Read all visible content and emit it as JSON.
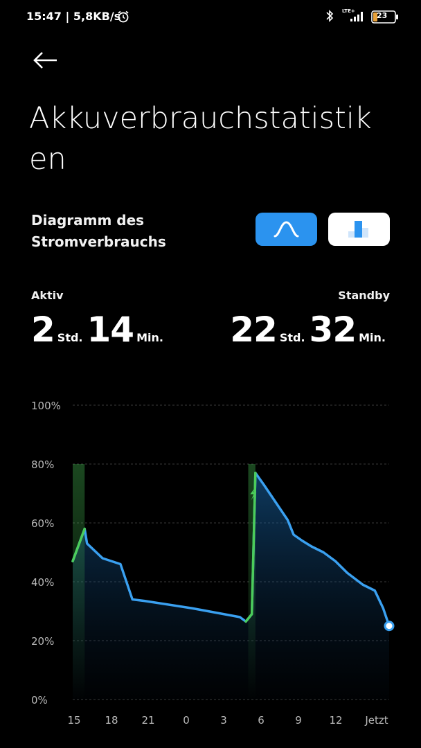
{
  "status_bar": {
    "time_and_speed": "15:47 | 5,8KB/s",
    "network_label": "LTE+",
    "battery_level": "23",
    "icons": [
      "alarm-icon",
      "bluetooth-icon",
      "signal-icon",
      "battery-icon"
    ]
  },
  "header": {
    "back_icon": "arrow-left-icon",
    "title": "Akkuverbrauchstatistiken"
  },
  "diagram": {
    "title": "Diagramm des Stromverbrauchs",
    "toggles": [
      {
        "name": "curve-view",
        "icon": "curve-icon",
        "selected": true
      },
      {
        "name": "bar-view",
        "icon": "bar-chart-icon",
        "selected": false
      }
    ]
  },
  "usage": {
    "active_label": "Aktiv",
    "active_hours": "2",
    "active_hours_unit": "Std.",
    "active_minutes": "14",
    "active_minutes_unit": "Min.",
    "standby_label": "Standby",
    "standby_hours": "22",
    "standby_hours_unit": "Std.",
    "standby_minutes": "32",
    "standby_minutes_unit": "Min."
  },
  "colors": {
    "accent": "#2b93ef",
    "line": "#3aa0f0",
    "charging": "#4ccc5a",
    "background": "#000000"
  },
  "chart_data": {
    "type": "line",
    "xlabel": "",
    "ylabel": "",
    "ylim": [
      0,
      100
    ],
    "y_ticks": [
      "100%",
      "80%",
      "60%",
      "40%",
      "20%",
      "0%"
    ],
    "x_ticks": [
      "15",
      "18",
      "21",
      "0",
      "3",
      "6",
      "9",
      "12",
      "Jetzt"
    ],
    "grid": true,
    "series": [
      {
        "points": [
          [
            0,
            47
          ],
          [
            1,
            58
          ],
          [
            1.2,
            53
          ],
          [
            2.5,
            48
          ],
          [
            4,
            46
          ],
          [
            4.5,
            40
          ],
          [
            5,
            34
          ],
          [
            6,
            33.5
          ],
          [
            10,
            31
          ],
          [
            14,
            28
          ],
          [
            14.5,
            26.5
          ],
          [
            15,
            29
          ],
          [
            15.3,
            77
          ],
          [
            16,
            73
          ],
          [
            17,
            67
          ],
          [
            18,
            61
          ],
          [
            18.5,
            56
          ],
          [
            19.2,
            54
          ],
          [
            20,
            52
          ],
          [
            21,
            50
          ],
          [
            22,
            47
          ],
          [
            23,
            43
          ],
          [
            24.3,
            39
          ],
          [
            25.3,
            37
          ],
          [
            26,
            31
          ],
          [
            26.5,
            25
          ]
        ]
      }
    ],
    "charging_segments": [
      [
        0,
        1
      ],
      [
        14.7,
        15.3
      ]
    ],
    "x_range": [
      0,
      26.5
    ],
    "current_value": 25
  }
}
